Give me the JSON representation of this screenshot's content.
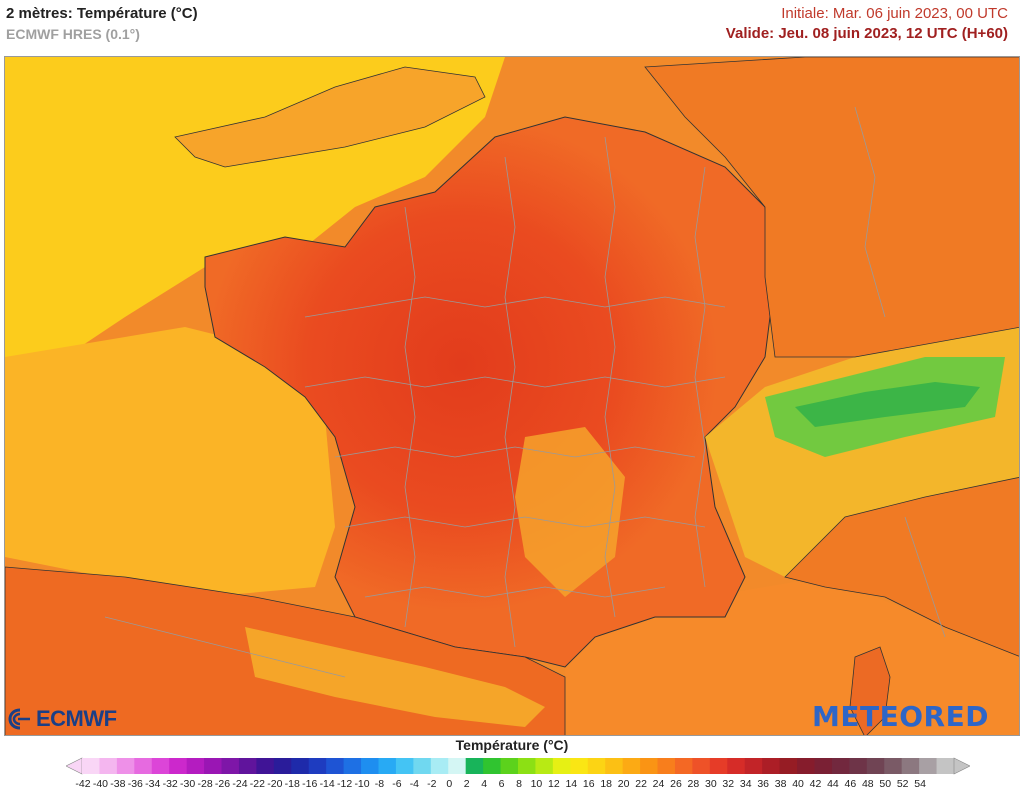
{
  "header": {
    "title": "2 mètres: Température (°C)",
    "model": "ECMWF HRES (0.1°)",
    "run": "Initiale: Mar. 06 juin 2023, 00 UTC",
    "valid": "Valide: Jeu. 08 juin 2023, 12 UTC (H+60)"
  },
  "logos": {
    "left": "ECMWF",
    "right": "METEORED"
  },
  "legend": {
    "title": "Température (°C)",
    "ticks": [
      "-42",
      "-40",
      "-38",
      "-36",
      "-34",
      "-32",
      "-30",
      "-28",
      "-26",
      "-24",
      "-22",
      "-20",
      "-18",
      "-16",
      "-14",
      "-12",
      "-10",
      "-8",
      "-6",
      "-4",
      "-2",
      "0",
      "2",
      "4",
      "6",
      "8",
      "10",
      "12",
      "14",
      "16",
      "18",
      "20",
      "22",
      "24",
      "26",
      "28",
      "30",
      "32",
      "34",
      "36",
      "38",
      "40",
      "42",
      "44",
      "46",
      "48",
      "50",
      "52",
      "54"
    ],
    "colors": [
      "#f9d6f6",
      "#f4b6ef",
      "#ee90e8",
      "#e66ae0",
      "#dc45d8",
      "#cc28cc",
      "#b41cc0",
      "#9a16b4",
      "#7e16a8",
      "#60149c",
      "#401496",
      "#2a1c9a",
      "#1e2aaa",
      "#1e3cc0",
      "#1e54d4",
      "#1e70e4",
      "#1e8ef0",
      "#28aaf4",
      "#44c4f4",
      "#70d8f0",
      "#a8ecf4",
      "#d4f6f4",
      "#18b45a",
      "#30c430",
      "#5cd21c",
      "#8ce014",
      "#b8ea14",
      "#e6f014",
      "#fae614",
      "#fcd414",
      "#fcc014",
      "#fcaa14",
      "#fa9414",
      "#f87e1c",
      "#f46824",
      "#ee5228",
      "#e63c28",
      "#d62c28",
      "#c22428",
      "#ac1e26",
      "#961c24",
      "#861c2c",
      "#7a2034",
      "#72283e",
      "#6e3448",
      "#704454",
      "#7a5a66",
      "#8c7880",
      "#a8a0a4",
      "#c4c4c4"
    ]
  },
  "map": {
    "ocean_colors": [
      "#fccc1c",
      "#f7a92a",
      "#f28a2a"
    ],
    "land_colors": [
      "#ee5a26",
      "#e8421f",
      "#f36c24",
      "#f8c22a",
      "#7ed65a",
      "#38c048"
    ]
  }
}
